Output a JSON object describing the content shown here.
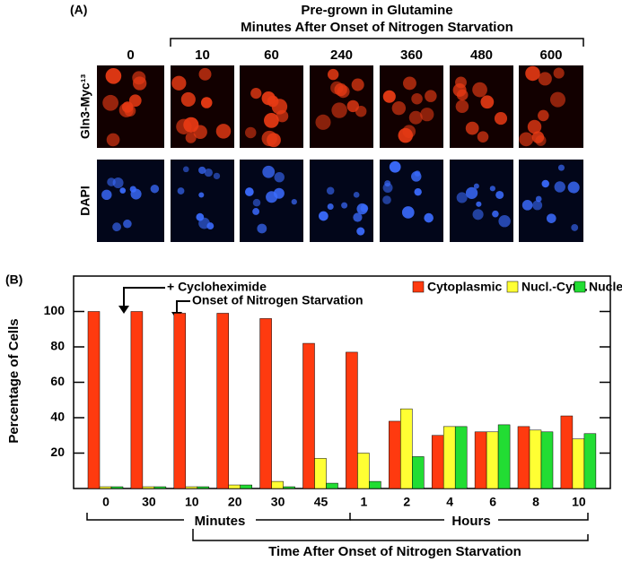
{
  "panel_a": {
    "label": "(A)",
    "header": "Pre-grown in Glutamine",
    "subheader": "Minutes After Onset of Nitrogen Starvation",
    "columns": [
      "0",
      "10",
      "60",
      "240",
      "360",
      "480",
      "600"
    ],
    "rows": [
      "Gln3-Myc¹³",
      "DAPI"
    ]
  },
  "chart_data": {
    "type": "bar",
    "label": "(B)",
    "y_label": "Percentage of Cells",
    "categories": [
      "0",
      "30",
      "10",
      "20",
      "30",
      "45",
      "1",
      "2",
      "4",
      "6",
      "8",
      "10"
    ],
    "series": [
      {
        "name": "Cytoplasmic",
        "color": "#ff3a0f",
        "values": [
          100,
          100,
          99,
          99,
          96,
          82,
          77,
          38,
          30,
          32,
          35,
          41
        ]
      },
      {
        "name": "Nucl.-Cyto.",
        "color": "#ffff33",
        "values": [
          1,
          1,
          1,
          2,
          4,
          17,
          20,
          45,
          35,
          32,
          33,
          28
        ]
      },
      {
        "name": "Nuclear",
        "color": "#22dd33",
        "values": [
          1,
          1,
          1,
          2,
          1,
          3,
          4,
          18,
          35,
          36,
          32,
          31
        ]
      }
    ],
    "ylim": [
      0,
      120
    ],
    "yticks": [
      20,
      40,
      60,
      80,
      100
    ],
    "annotations": [
      "+ Cycloheximide",
      "Onset of Nitrogen Starvation"
    ],
    "group_labels": [
      "Minutes",
      "Hours"
    ],
    "x_label": "Time After Onset of Nitrogen Starvation"
  }
}
